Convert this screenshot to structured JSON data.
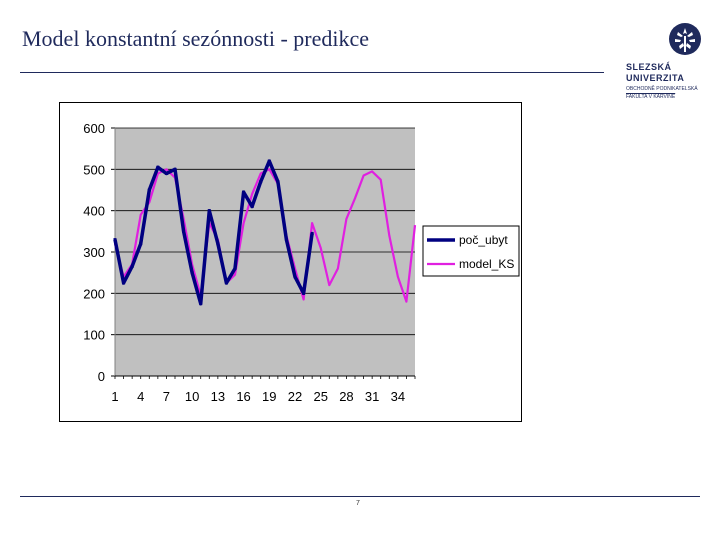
{
  "slide": {
    "title": "Model konstantní sezónnosti - predikce",
    "page_number": "7"
  },
  "logo": {
    "line1": "SLEZSKÁ",
    "line2": "UNIVERZITA",
    "line3": "OBCHODNĚ PODNIKATELSKÁ",
    "line4": "FAKULTA V KARVINÉ",
    "color": "#1f2a5c",
    "icon": "university-emblem-icon"
  },
  "chart_data": {
    "type": "line",
    "title": "",
    "xlabel": "",
    "ylabel": "",
    "ylim": [
      0,
      600
    ],
    "yticks": [
      0,
      100,
      200,
      300,
      400,
      500,
      600
    ],
    "x": [
      1,
      2,
      3,
      4,
      5,
      6,
      7,
      8,
      9,
      10,
      11,
      12,
      13,
      14,
      15,
      16,
      17,
      18,
      19,
      20,
      21,
      22,
      23,
      24,
      25,
      26,
      27,
      28,
      29,
      30,
      31,
      32,
      33,
      34,
      35,
      36
    ],
    "xtick_labels": [
      "1",
      "4",
      "7",
      "10",
      "13",
      "16",
      "19",
      "22",
      "25",
      "28",
      "31",
      "34"
    ],
    "xtick_positions": [
      1,
      4,
      7,
      10,
      13,
      16,
      19,
      22,
      25,
      28,
      31,
      34
    ],
    "plot_background": "#c0c0c0",
    "grid": true,
    "legend_position": "right",
    "series": [
      {
        "name": "poč_ubyt",
        "color": "#000080",
        "values": [
          330,
          225,
          265,
          320,
          450,
          505,
          490,
          500,
          350,
          250,
          175,
          400,
          320,
          225,
          260,
          445,
          410,
          470,
          520,
          470,
          330,
          240,
          200,
          345,
          null,
          null,
          null,
          null,
          null,
          null,
          null,
          null,
          null,
          null,
          null,
          null
        ]
      },
      {
        "name": "model_KS",
        "color": "#e020e0",
        "values": [
          320,
          240,
          270,
          390,
          420,
          490,
          500,
          480,
          380,
          270,
          195,
          370,
          330,
          225,
          245,
          370,
          440,
          490,
          500,
          465,
          340,
          260,
          185,
          370,
          310,
          220,
          260,
          380,
          430,
          485,
          495,
          475,
          340,
          240,
          180,
          365
        ]
      }
    ]
  }
}
